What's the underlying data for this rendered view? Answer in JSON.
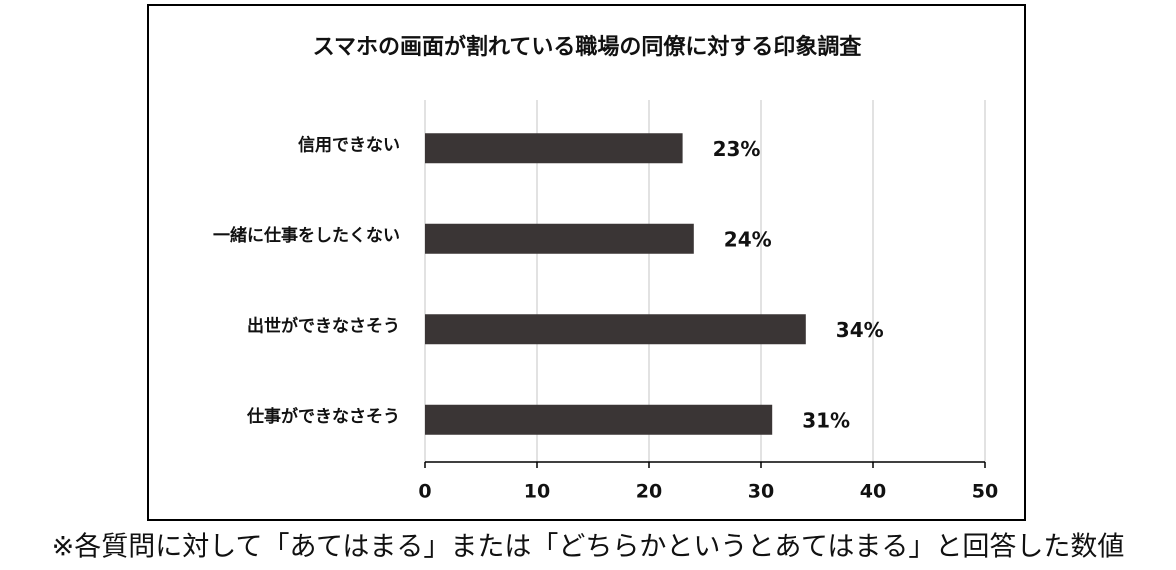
{
  "chart_data": {
    "type": "bar",
    "orientation": "horizontal",
    "title": "スマホの画面が割れている職場の同僚に対する印象調査",
    "categories": [
      "信用できない",
      "一緒に仕事をしたくない",
      "出世ができなさそう",
      "仕事ができなさそう"
    ],
    "values": [
      23,
      24,
      34,
      31
    ],
    "value_labels": [
      "23%",
      "24%",
      "34%",
      "31%"
    ],
    "color": "#3a3535",
    "xlim": [
      0,
      50
    ],
    "xticks": [
      0,
      10,
      20,
      30,
      40,
      50
    ],
    "grid": true,
    "note": "※各質問に対して「あてはまる」または「どちらかというとあてはまる」と回答した数値"
  }
}
